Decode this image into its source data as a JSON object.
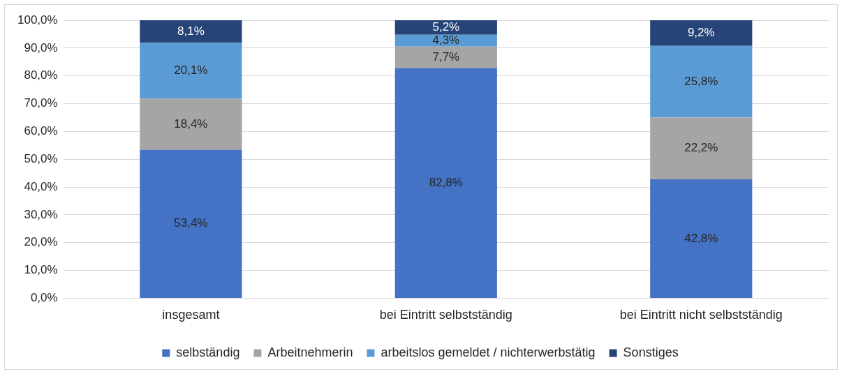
{
  "chart_data": {
    "type": "bar",
    "stacked": true,
    "categories": [
      "insgesamt",
      "bei Eintritt selbstständig",
      "bei Eintritt nicht selbstständig"
    ],
    "series": [
      {
        "name": "selbständig",
        "color": "#4472c4",
        "values": [
          53.4,
          82.8,
          42.8
        ],
        "value_labels": [
          "53,4%",
          "82,8%",
          "42,8%"
        ]
      },
      {
        "name": "Arbeitnehmerin",
        "color": "#a5a5a5",
        "values": [
          18.4,
          7.7,
          22.2
        ],
        "value_labels": [
          "18,4%",
          "7,7%",
          "22,2%"
        ]
      },
      {
        "name": "arbeitslos gemeldet / nichterwerbstätig",
        "color": "#5b9bd5",
        "values": [
          20.1,
          4.3,
          25.8
        ],
        "value_labels": [
          "20,1%",
          "4,3%",
          "25,8%"
        ]
      },
      {
        "name": "Sonstiges",
        "color": "#264478",
        "values": [
          8.1,
          5.2,
          9.2
        ],
        "value_labels": [
          "8,1%",
          "5,2%",
          "9,2%"
        ]
      }
    ],
    "ylim": [
      0,
      100
    ],
    "yticks": [
      {
        "value": 0,
        "label": "0,0%"
      },
      {
        "value": 10,
        "label": "10,0%"
      },
      {
        "value": 20,
        "label": "20,0%"
      },
      {
        "value": 30,
        "label": "30,0%"
      },
      {
        "value": 40,
        "label": "40,0%"
      },
      {
        "value": 50,
        "label": "50,0%"
      },
      {
        "value": 60,
        "label": "60,0%"
      },
      {
        "value": 70,
        "label": "70,0%"
      },
      {
        "value": 80,
        "label": "80,0%"
      },
      {
        "value": 90,
        "label": "90,0%"
      },
      {
        "value": 100,
        "label": "100,0%"
      }
    ],
    "grid": "y",
    "legend": "bottom"
  }
}
